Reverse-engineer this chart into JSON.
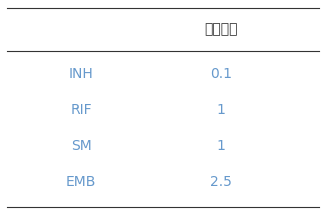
{
  "header": "한계농도",
  "rows": [
    {
      "drug": "INH",
      "value": "0.1"
    },
    {
      "drug": "RIF",
      "value": "1"
    },
    {
      "drug": "SM",
      "value": "1"
    },
    {
      "drug": "EMB",
      "value": "2.5"
    }
  ],
  "drug_color": "#6699cc",
  "value_color": "#6699cc",
  "header_color": "#333333",
  "bg_color": "#ffffff",
  "line_color": "#333333",
  "header_fontsize": 10,
  "data_fontsize": 10
}
